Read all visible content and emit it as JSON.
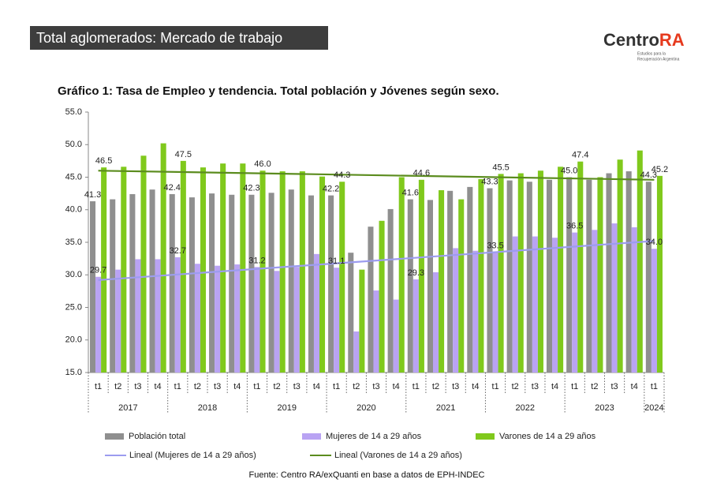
{
  "header": {
    "title": "Total aglomerados: Mercado de trabajo"
  },
  "logo": {
    "name": "Centro",
    "accent": "RA",
    "tagline_1": "Estudios para la",
    "tagline_2": "Recuperación Argentina"
  },
  "chart_data": {
    "type": "bar",
    "title": "Gráfico 1: Tasa de Empleo y tendencia. Total población y Jóvenes según sexo.",
    "source": "Fuente: Centro RA/exQuanti en base a datos de EPH-INDEC",
    "categories": [
      "t1",
      "t2",
      "t3",
      "t4",
      "t1",
      "t2",
      "t3",
      "t4",
      "t1",
      "t2",
      "t3",
      "t4",
      "t1",
      "t2",
      "t3",
      "t4",
      "t1",
      "t2",
      "t3",
      "t4",
      "t1",
      "t2",
      "t3",
      "t4",
      "t1",
      "t2",
      "t3",
      "t4",
      "t1"
    ],
    "years": [
      "2017",
      "2018",
      "2019",
      "2020",
      "2021",
      "2022",
      "2023",
      "2024"
    ],
    "ylim": [
      15,
      55
    ],
    "yticks": [
      {
        "value": 15,
        "label": "15.0"
      },
      {
        "value": 20,
        "label": "20.0"
      },
      {
        "value": 25,
        "label": "25.0"
      },
      {
        "value": 30,
        "label": "30.0"
      },
      {
        "value": 35,
        "label": "35.0"
      },
      {
        "value": 40,
        "label": "40.0"
      },
      {
        "value": 45,
        "label": "45.0"
      },
      {
        "value": 50,
        "label": "50.0"
      },
      {
        "value": 55,
        "label": "55.0"
      }
    ],
    "grid": false,
    "series": [
      {
        "name": "Población total",
        "color": "#8f8f8f",
        "values": [
          41.3,
          41.6,
          42.4,
          43.1,
          42.4,
          41.9,
          42.5,
          42.3,
          42.3,
          42.6,
          43.1,
          42.2,
          42.2,
          33.4,
          37.4,
          40.1,
          41.6,
          41.5,
          42.9,
          43.5,
          43.3,
          44.5,
          44.3,
          44.6,
          45.0,
          44.6,
          45.6,
          45.9,
          44.3
        ],
        "value_labels": [
          "41.3",
          null,
          null,
          null,
          "42.4",
          null,
          null,
          null,
          "42.3",
          null,
          null,
          null,
          "42.2",
          null,
          null,
          null,
          "41.6",
          null,
          null,
          null,
          "43.3",
          null,
          null,
          null,
          "45.0",
          null,
          null,
          null,
          "44.3"
        ]
      },
      {
        "name": "Mujeres de 14 a 29 años",
        "color": "#b9a3f3",
        "values": [
          29.7,
          30.8,
          32.4,
          32.4,
          32.7,
          31.7,
          31.4,
          31.6,
          31.2,
          30.6,
          31.2,
          33.2,
          31.1,
          21.3,
          27.6,
          26.2,
          29.3,
          30.4,
          34.1,
          33.7,
          33.5,
          35.9,
          35.9,
          35.7,
          36.5,
          36.9,
          37.9,
          37.3,
          34.0
        ],
        "value_labels": [
          "29.7",
          null,
          null,
          null,
          "32.7",
          null,
          null,
          null,
          "31.2",
          null,
          null,
          null,
          "31.1",
          null,
          null,
          null,
          "29.3",
          null,
          null,
          null,
          "33.5",
          null,
          null,
          null,
          "36.5",
          null,
          null,
          null,
          "34.0"
        ]
      },
      {
        "name": "Varones de 14 a 29 años",
        "color": "#80c91c",
        "values": [
          46.5,
          46.6,
          48.3,
          50.2,
          47.5,
          46.5,
          47.1,
          47.1,
          46.0,
          45.9,
          45.9,
          45.1,
          44.3,
          30.8,
          38.3,
          45.0,
          44.6,
          43.0,
          41.6,
          44.7,
          45.5,
          45.6,
          46.0,
          46.6,
          47.4,
          45.0,
          47.7,
          49.1,
          45.2
        ],
        "value_labels": [
          "46.5",
          null,
          null,
          null,
          "47.5",
          null,
          null,
          null,
          "46.0",
          null,
          null,
          null,
          "44.3",
          null,
          null,
          null,
          "44.6",
          null,
          null,
          null,
          "45.5",
          null,
          null,
          null,
          "47.4",
          null,
          null,
          null,
          "45.2"
        ]
      }
    ],
    "trends": [
      {
        "name": "Lineal (Mujeres de 14 a 29 años)",
        "color": "#9c9cef",
        "values": [
          29.2,
          35.2
        ]
      },
      {
        "name": "Lineal (Varones de 14 a 29 años)",
        "color": "#5b8c1e",
        "values": [
          46.0,
          44.6
        ]
      }
    ]
  }
}
